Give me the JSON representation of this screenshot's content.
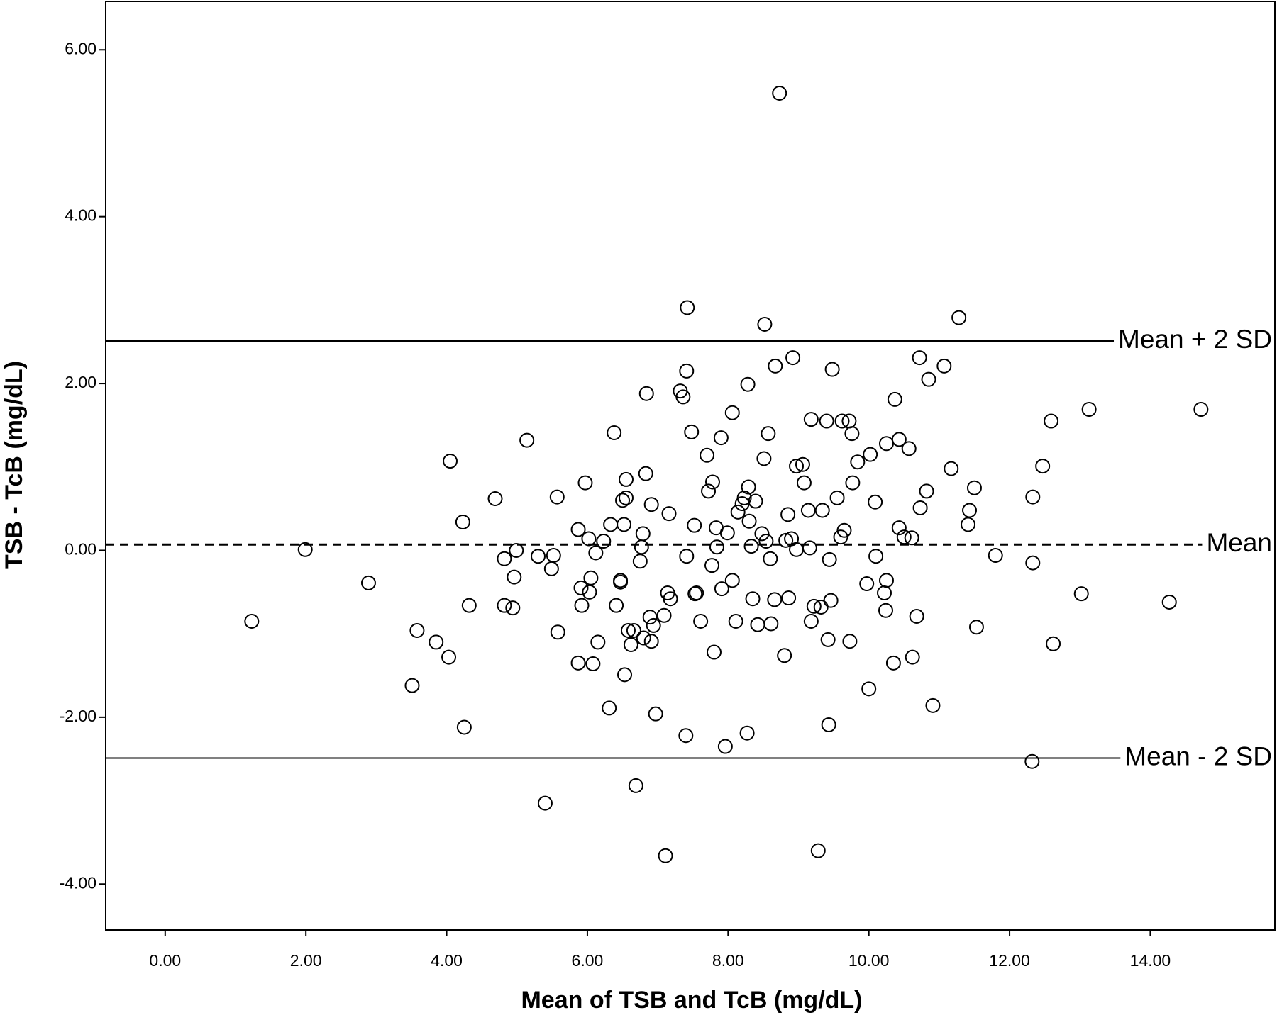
{
  "chart_data": {
    "type": "scatter",
    "x_label": "Mean of TSB and TcB (mg/dL)",
    "y_label": "TSB - TcB (mg/dL)",
    "xlim": [
      -0.845,
      15.77
    ],
    "ylim": [
      -4.55,
      6.58
    ],
    "xticks": [
      {
        "value": 0,
        "label": "0.00"
      },
      {
        "value": 2,
        "label": "2.00"
      },
      {
        "value": 4,
        "label": "4.00"
      },
      {
        "value": 6,
        "label": "6.00"
      },
      {
        "value": 8,
        "label": "8.00"
      },
      {
        "value": 10,
        "label": "10.00"
      },
      {
        "value": 12,
        "label": "12.00"
      },
      {
        "value": 14,
        "label": "14.00"
      }
    ],
    "yticks": [
      {
        "value": -4,
        "label": "-4.00"
      },
      {
        "value": -2,
        "label": "-2.00"
      },
      {
        "value": 0,
        "label": "0.00"
      },
      {
        "value": 2,
        "label": "2.00"
      },
      {
        "value": 4,
        "label": "4.00"
      },
      {
        "value": 6,
        "label": "6.00"
      }
    ],
    "marker_color": "#000000",
    "reference_lines": [
      {
        "label": "Mean + 2 SD",
        "value": 2.51,
        "style": "solid"
      },
      {
        "label": "Mean",
        "value": 0.07,
        "style": "dashed"
      },
      {
        "label": "Mean - 2 SD",
        "value": -2.49,
        "style": "solid"
      }
    ],
    "x": [
      1.23,
      1.99,
      2.89,
      3.51,
      3.58,
      3.85,
      4.03,
      4.05,
      4.23,
      4.25,
      4.32,
      4.69,
      4.82,
      4.82,
      4.94,
      4.96,
      4.99,
      5.14,
      5.3,
      5.4,
      5.49,
      5.52,
      5.57,
      5.58,
      5.87,
      5.91,
      5.87,
      5.92,
      5.97,
      6.02,
      6.03,
      6.05,
      6.08,
      6.12,
      6.15,
      6.23,
      6.31,
      6.33,
      6.38,
      6.41,
      6.47,
      6.47,
      6.5,
      6.52,
      6.53,
      6.55,
      6.55,
      6.58,
      6.62,
      6.66,
      6.69,
      6.75,
      6.77,
      6.79,
      6.8,
      6.83,
      6.84,
      6.89,
      6.91,
      6.91,
      6.94,
      6.97,
      7.09,
      7.11,
      7.14,
      7.16,
      7.18,
      7.32,
      7.36,
      7.4,
      7.41,
      7.42,
      7.41,
      7.48,
      7.52,
      7.53,
      7.55,
      7.61,
      7.7,
      7.72,
      7.77,
      7.78,
      7.8,
      7.83,
      7.84,
      7.9,
      7.91,
      7.96,
      7.99,
      8.06,
      8.06,
      8.11,
      8.14,
      8.2,
      8.23,
      8.27,
      8.28,
      8.29,
      8.3,
      8.33,
      8.35,
      8.39,
      8.42,
      8.48,
      8.51,
      8.52,
      8.54,
      8.57,
      8.6,
      8.61,
      8.66,
      8.67,
      8.73,
      8.8,
      8.82,
      8.85,
      8.86,
      8.9,
      8.92,
      8.97,
      8.97,
      9.06,
      9.08,
      9.14,
      9.16,
      9.18,
      9.18,
      9.22,
      9.28,
      9.32,
      9.34,
      9.4,
      9.42,
      9.43,
      9.44,
      9.46,
      9.48,
      9.55,
      9.6,
      9.62,
      9.65,
      9.72,
      9.73,
      9.76,
      9.77,
      9.84,
      9.97,
      10.0,
      10.02,
      10.1,
      10.09,
      10.22,
      10.24,
      10.25,
      10.25,
      10.35,
      10.37,
      10.43,
      10.43,
      10.5,
      10.57,
      10.61,
      10.62,
      10.68,
      10.73,
      10.72,
      10.82,
      10.85,
      10.91,
      11.07,
      11.17,
      11.28,
      11.41,
      11.43,
      11.5,
      11.53,
      11.8,
      12.33,
      12.33,
      12.32,
      12.47,
      12.59,
      12.62,
      13.02,
      13.13,
      14.27,
      14.72
    ],
    "values": [
      -0.85,
      0.01,
      -0.39,
      -1.62,
      -0.96,
      -1.1,
      -1.28,
      1.07,
      0.34,
      -2.12,
      -0.66,
      0.62,
      -0.1,
      -0.66,
      -0.69,
      -0.32,
      0.0,
      1.32,
      -0.07,
      -3.03,
      -0.22,
      -0.06,
      0.64,
      -0.98,
      0.25,
      -0.45,
      -1.35,
      -0.66,
      0.81,
      0.14,
      -0.5,
      -0.33,
      -1.36,
      -0.03,
      -1.1,
      0.11,
      -1.89,
      0.31,
      1.41,
      -0.66,
      -0.38,
      -0.36,
      0.6,
      0.31,
      -1.49,
      0.85,
      0.63,
      -0.96,
      -1.13,
      -0.96,
      -2.82,
      -0.13,
      0.04,
      0.2,
      -1.05,
      0.92,
      1.88,
      -0.8,
      0.55,
      -1.09,
      -0.9,
      -1.96,
      -0.78,
      -3.66,
      -0.51,
      0.44,
      -0.58,
      1.91,
      1.84,
      -2.22,
      2.15,
      2.91,
      -0.07,
      1.42,
      0.3,
      -0.52,
      -0.51,
      -0.85,
      1.14,
      0.71,
      -0.18,
      0.82,
      -1.22,
      0.27,
      0.04,
      1.35,
      -0.46,
      -2.35,
      0.21,
      1.65,
      -0.36,
      -0.85,
      0.46,
      0.56,
      0.63,
      -2.19,
      1.99,
      0.76,
      0.35,
      0.05,
      -0.58,
      0.59,
      -0.89,
      0.2,
      1.1,
      2.71,
      0.11,
      1.4,
      -0.1,
      -0.88,
      -0.59,
      2.21,
      5.48,
      -1.26,
      0.12,
      0.43,
      -0.57,
      0.14,
      2.31,
      0.01,
      1.01,
      1.03,
      0.81,
      0.48,
      0.03,
      1.57,
      -0.85,
      -0.67,
      -3.6,
      -0.68,
      0.48,
      1.55,
      -1.07,
      -2.09,
      -0.11,
      -0.6,
      2.17,
      0.63,
      0.16,
      1.55,
      0.24,
      1.55,
      -1.09,
      1.4,
      0.81,
      1.06,
      -0.4,
      -1.66,
      1.15,
      -0.07,
      0.58,
      -0.51,
      -0.72,
      -0.36,
      1.28,
      -1.35,
      1.81,
      1.33,
      0.27,
      0.16,
      1.22,
      0.15,
      -1.28,
      -0.79,
      0.51,
      2.31,
      0.71,
      2.05,
      -1.86,
      2.21,
      0.98,
      2.79,
      0.31,
      0.48,
      0.75,
      -0.92,
      -0.06,
      -0.15,
      0.64,
      -2.53,
      1.01,
      1.55,
      -1.12,
      -0.52,
      1.69,
      -0.62,
      1.69
    ]
  }
}
